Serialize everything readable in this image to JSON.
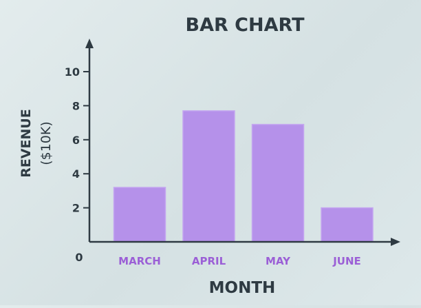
{
  "chart_data": {
    "type": "bar",
    "title": "BAR CHART",
    "xlabel": "MONTH",
    "ylabel": "REVENUE",
    "ylabel_unit": "($10K)",
    "categories": [
      "MARCH",
      "APRIL",
      "MAY",
      "JUNE"
    ],
    "values": [
      3.2,
      7.7,
      6.9,
      2.0
    ],
    "ylim": [
      0,
      10
    ],
    "yticks": [
      2,
      4,
      6,
      8,
      10
    ],
    "origin_label": "0",
    "grid": false,
    "legend": "none"
  },
  "colors": {
    "bar": "#b591ea",
    "bar_edge": "#c4a6f0",
    "category_label": "#9b5fd6",
    "axis": "#2e3a42",
    "text": "#2e3a42"
  }
}
